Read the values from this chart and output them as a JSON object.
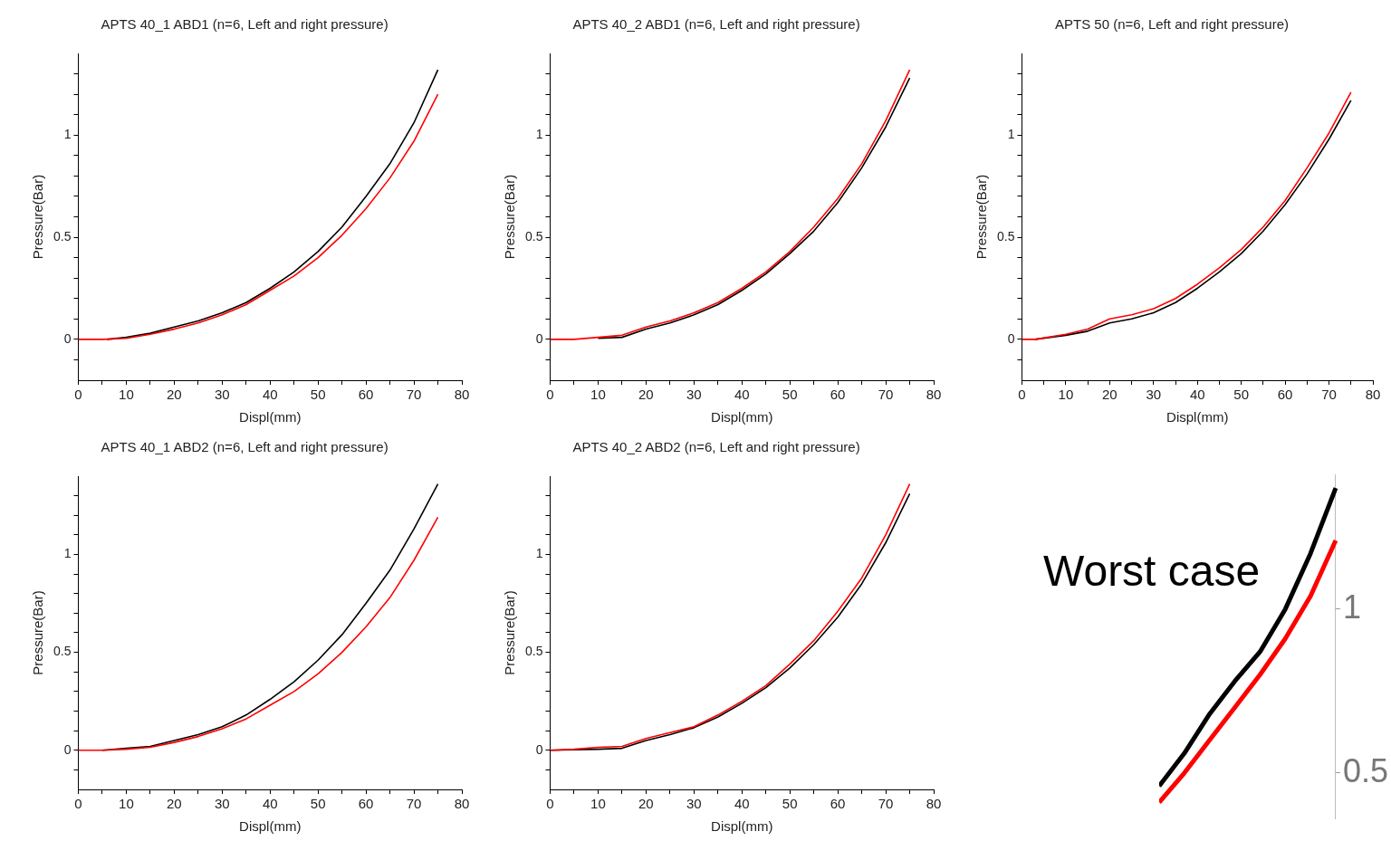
{
  "chart_data": [
    {
      "type": "line",
      "title": "APTS 40_1 ABD1 (n=6, Left and right pressure)",
      "xlabel": "Displ(mm)",
      "ylabel": "Pressure(Bar)",
      "xlim": [
        0,
        80
      ],
      "ylim": [
        -0.2,
        1.4
      ],
      "xticks": [
        0,
        {
          "value": 5,
          "label": null
        },
        10,
        {
          "value": 15,
          "label": null
        },
        20,
        {
          "value": 25,
          "label": null
        },
        30,
        {
          "value": 35,
          "label": null
        },
        40,
        {
          "value": 45,
          "label": null
        },
        50,
        {
          "value": 55,
          "label": null
        },
        60,
        {
          "value": 65,
          "label": null
        },
        70,
        {
          "value": 75,
          "label": null
        },
        80
      ],
      "yticks": [
        {
          "value": -0.1,
          "label": null
        },
        0,
        {
          "value": 0.1,
          "label": null
        },
        {
          "value": 0.2,
          "label": null
        },
        {
          "value": 0.3,
          "label": null
        },
        {
          "value": 0.4,
          "label": null
        },
        0.5,
        {
          "value": 0.6,
          "label": null
        },
        {
          "value": 0.7,
          "label": null
        },
        {
          "value": 0.8,
          "label": null
        },
        {
          "value": 0.9,
          "label": null
        },
        1,
        {
          "value": 1.1,
          "label": null
        },
        {
          "value": 1.2,
          "label": null
        },
        {
          "value": 1.3,
          "label": null
        }
      ],
      "grid": false,
      "legend": false,
      "marker": "none",
      "line_style": "solid",
      "series": [
        {
          "color": "#000000",
          "x": [
            6,
            10,
            15,
            20,
            25,
            30,
            35,
            40,
            45,
            50,
            55,
            60,
            65,
            70,
            75
          ],
          "values": [
            0,
            0.01,
            0.03,
            0.06,
            0.09,
            0.13,
            0.18,
            0.25,
            0.33,
            0.43,
            0.55,
            0.7,
            0.86,
            1.06,
            1.32
          ]
        },
        {
          "color": "#ff0000",
          "x": [
            0,
            5,
            10,
            15,
            20,
            25,
            30,
            35,
            40,
            45,
            50,
            55,
            60,
            65,
            70,
            75
          ],
          "values": [
            0,
            0,
            0.005,
            0.025,
            0.05,
            0.08,
            0.12,
            0.17,
            0.24,
            0.31,
            0.4,
            0.51,
            0.64,
            0.79,
            0.97,
            1.2
          ]
        }
      ]
    },
    {
      "type": "line",
      "title": "APTS 40_2 ABD1 (n=6, Left and right pressure)",
      "xlabel": "Displ(mm)",
      "ylabel": "Pressure(Bar)",
      "xlim": [
        0,
        80
      ],
      "ylim": [
        -0.2,
        1.4
      ],
      "xticks": [
        0,
        {
          "value": 5,
          "label": null
        },
        10,
        {
          "value": 15,
          "label": null
        },
        20,
        {
          "value": 25,
          "label": null
        },
        30,
        {
          "value": 35,
          "label": null
        },
        40,
        {
          "value": 45,
          "label": null
        },
        50,
        {
          "value": 55,
          "label": null
        },
        60,
        {
          "value": 65,
          "label": null
        },
        70,
        {
          "value": 75,
          "label": null
        },
        80
      ],
      "yticks": [
        {
          "value": -0.1,
          "label": null
        },
        0,
        {
          "value": 0.1,
          "label": null
        },
        {
          "value": 0.2,
          "label": null
        },
        {
          "value": 0.3,
          "label": null
        },
        {
          "value": 0.4,
          "label": null
        },
        0.5,
        {
          "value": 0.6,
          "label": null
        },
        {
          "value": 0.7,
          "label": null
        },
        {
          "value": 0.8,
          "label": null
        },
        {
          "value": 0.9,
          "label": null
        },
        1,
        {
          "value": 1.1,
          "label": null
        },
        {
          "value": 1.2,
          "label": null
        },
        {
          "value": 1.3,
          "label": null
        }
      ],
      "grid": false,
      "legend": false,
      "marker": "none",
      "line_style": "solid",
      "series": [
        {
          "color": "#000000",
          "x": [
            10,
            15,
            20,
            25,
            30,
            35,
            40,
            45,
            50,
            55,
            60,
            65,
            70,
            75
          ],
          "values": [
            0.005,
            0.01,
            0.05,
            0.08,
            0.12,
            0.17,
            0.24,
            0.32,
            0.42,
            0.53,
            0.67,
            0.84,
            1.04,
            1.28
          ]
        },
        {
          "color": "#ff0000",
          "x": [
            0,
            5,
            10,
            15,
            20,
            25,
            30,
            35,
            40,
            45,
            50,
            55,
            60,
            65,
            70,
            75
          ],
          "values": [
            0,
            0,
            0.01,
            0.02,
            0.06,
            0.09,
            0.13,
            0.18,
            0.25,
            0.33,
            0.43,
            0.55,
            0.69,
            0.86,
            1.07,
            1.32
          ]
        }
      ]
    },
    {
      "type": "line",
      "title": "APTS 50 (n=6, Left and right pressure)",
      "xlabel": "Displ(mm)",
      "ylabel": "Pressure(Bar)",
      "xlim": [
        0,
        80
      ],
      "ylim": [
        -0.2,
        1.4
      ],
      "xticks": [
        0,
        {
          "value": 5,
          "label": null
        },
        10,
        {
          "value": 15,
          "label": null
        },
        20,
        {
          "value": 25,
          "label": null
        },
        30,
        {
          "value": 35,
          "label": null
        },
        40,
        {
          "value": 45,
          "label": null
        },
        50,
        {
          "value": 55,
          "label": null
        },
        60,
        {
          "value": 65,
          "label": null
        },
        70,
        {
          "value": 75,
          "label": null
        },
        80
      ],
      "yticks": [
        {
          "value": -0.1,
          "label": null
        },
        0,
        {
          "value": 0.1,
          "label": null
        },
        {
          "value": 0.2,
          "label": null
        },
        {
          "value": 0.3,
          "label": null
        },
        {
          "value": 0.4,
          "label": null
        },
        0.5,
        {
          "value": 0.6,
          "label": null
        },
        {
          "value": 0.7,
          "label": null
        },
        {
          "value": 0.8,
          "label": null
        },
        {
          "value": 0.9,
          "label": null
        },
        1,
        {
          "value": 1.1,
          "label": null
        },
        {
          "value": 1.2,
          "label": null
        },
        {
          "value": 1.3,
          "label": null
        }
      ],
      "grid": false,
      "legend": false,
      "marker": "none",
      "line_style": "solid",
      "series": [
        {
          "color": "#000000",
          "x": [
            3,
            10,
            15,
            20,
            25,
            30,
            35,
            40,
            45,
            50,
            55,
            60,
            65,
            70,
            75
          ],
          "values": [
            0,
            0.02,
            0.04,
            0.08,
            0.1,
            0.13,
            0.18,
            0.25,
            0.33,
            0.42,
            0.53,
            0.66,
            0.81,
            0.98,
            1.17
          ]
        },
        {
          "color": "#ff0000",
          "x": [
            0,
            3,
            10,
            15,
            20,
            25,
            30,
            35,
            40,
            45,
            50,
            55,
            60,
            65,
            70,
            75
          ],
          "values": [
            0,
            0,
            0.025,
            0.05,
            0.1,
            0.12,
            0.15,
            0.2,
            0.27,
            0.35,
            0.44,
            0.55,
            0.68,
            0.84,
            1.01,
            1.21
          ]
        }
      ]
    },
    {
      "type": "line",
      "title": "APTS 40_1 ABD2 (n=6, Left and right pressure)",
      "xlabel": "Displ(mm)",
      "ylabel": "Pressure(Bar)",
      "xlim": [
        0,
        80
      ],
      "ylim": [
        -0.2,
        1.4
      ],
      "xticks": [
        0,
        {
          "value": 5,
          "label": null
        },
        10,
        {
          "value": 15,
          "label": null
        },
        20,
        {
          "value": 25,
          "label": null
        },
        30,
        {
          "value": 35,
          "label": null
        },
        40,
        {
          "value": 45,
          "label": null
        },
        50,
        {
          "value": 55,
          "label": null
        },
        60,
        {
          "value": 65,
          "label": null
        },
        70,
        {
          "value": 75,
          "label": null
        },
        80
      ],
      "yticks": [
        {
          "value": -0.1,
          "label": null
        },
        0,
        {
          "value": 0.1,
          "label": null
        },
        {
          "value": 0.2,
          "label": null
        },
        {
          "value": 0.3,
          "label": null
        },
        {
          "value": 0.4,
          "label": null
        },
        0.5,
        {
          "value": 0.6,
          "label": null
        },
        {
          "value": 0.7,
          "label": null
        },
        {
          "value": 0.8,
          "label": null
        },
        {
          "value": 0.9,
          "label": null
        },
        1,
        {
          "value": 1.1,
          "label": null
        },
        {
          "value": 1.2,
          "label": null
        },
        {
          "value": 1.3,
          "label": null
        }
      ],
      "grid": false,
      "legend": false,
      "marker": "none",
      "line_style": "solid",
      "series": [
        {
          "color": "#000000",
          "x": [
            5,
            10,
            15,
            20,
            25,
            30,
            35,
            40,
            45,
            50,
            55,
            60,
            65,
            70,
            75
          ],
          "values": [
            0,
            0.01,
            0.02,
            0.05,
            0.08,
            0.12,
            0.18,
            0.26,
            0.35,
            0.46,
            0.59,
            0.75,
            0.92,
            1.13,
            1.36
          ]
        },
        {
          "color": "#ff0000",
          "x": [
            0,
            5,
            10,
            15,
            20,
            25,
            30,
            35,
            40,
            45,
            50,
            55,
            60,
            65,
            70,
            75
          ],
          "values": [
            0,
            0,
            0.005,
            0.015,
            0.04,
            0.07,
            0.11,
            0.16,
            0.23,
            0.3,
            0.39,
            0.5,
            0.63,
            0.78,
            0.97,
            1.19
          ]
        }
      ]
    },
    {
      "type": "line",
      "title": "APTS 40_2 ABD2 (n=6, Left and right pressure)",
      "xlabel": "Displ(mm)",
      "ylabel": "Pressure(Bar)",
      "xlim": [
        0,
        80
      ],
      "ylim": [
        -0.2,
        1.4
      ],
      "xticks": [
        0,
        {
          "value": 5,
          "label": null
        },
        10,
        {
          "value": 15,
          "label": null
        },
        20,
        {
          "value": 25,
          "label": null
        },
        30,
        {
          "value": 35,
          "label": null
        },
        40,
        {
          "value": 45,
          "label": null
        },
        50,
        {
          "value": 55,
          "label": null
        },
        60,
        {
          "value": 65,
          "label": null
        },
        70,
        {
          "value": 75,
          "label": null
        },
        80
      ],
      "yticks": [
        {
          "value": -0.1,
          "label": null
        },
        0,
        {
          "value": 0.1,
          "label": null
        },
        {
          "value": 0.2,
          "label": null
        },
        {
          "value": 0.3,
          "label": null
        },
        {
          "value": 0.4,
          "label": null
        },
        0.5,
        {
          "value": 0.6,
          "label": null
        },
        {
          "value": 0.7,
          "label": null
        },
        {
          "value": 0.8,
          "label": null
        },
        {
          "value": 0.9,
          "label": null
        },
        1,
        {
          "value": 1.1,
          "label": null
        },
        {
          "value": 1.2,
          "label": null
        },
        {
          "value": 1.3,
          "label": null
        }
      ],
      "grid": false,
      "legend": false,
      "marker": "none",
      "line_style": "solid",
      "series": [
        {
          "color": "#000000",
          "x": [
            0,
            10,
            15,
            20,
            25,
            30,
            35,
            40,
            45,
            50,
            55,
            60,
            65,
            70,
            75
          ],
          "values": [
            0,
            0.005,
            0.01,
            0.05,
            0.08,
            0.115,
            0.17,
            0.24,
            0.32,
            0.42,
            0.54,
            0.68,
            0.85,
            1.06,
            1.31
          ]
        },
        {
          "color": "#ff0000",
          "x": [
            0,
            5,
            10,
            15,
            20,
            25,
            30,
            35,
            40,
            45,
            50,
            55,
            60,
            65,
            70,
            75
          ],
          "values": [
            0,
            0.005,
            0.015,
            0.02,
            0.06,
            0.09,
            0.12,
            0.18,
            0.25,
            0.33,
            0.44,
            0.56,
            0.71,
            0.88,
            1.1,
            1.36
          ]
        }
      ]
    },
    {
      "type": "line",
      "title": "Worst case",
      "categories": [
        null,
        null,
        null,
        null,
        null,
        null,
        null,
        null
      ],
      "ylim": [
        0.36,
        1.41
      ],
      "yticks": [
        0.5,
        1
      ],
      "tick_labels": "y",
      "grid": false,
      "legend": false,
      "marker": "none",
      "line_style": "solid",
      "series": [
        {
          "color": "#000000",
          "values": [
            0.46,
            0.56,
            0.68,
            0.78,
            0.87,
            1.0,
            1.17,
            1.37
          ]
        },
        {
          "color": "#ff0000",
          "values": [
            0.41,
            0.5,
            0.6,
            0.7,
            0.8,
            0.91,
            1.04,
            1.21
          ]
        }
      ]
    }
  ]
}
